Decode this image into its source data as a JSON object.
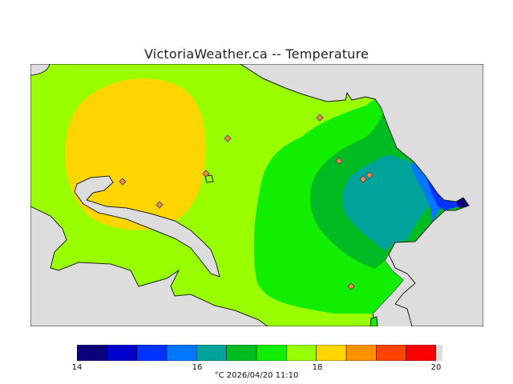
{
  "title": "VictoriaWeather.ca -- Temperature",
  "caption": "°C 2026/04/20 11:10",
  "legend": {
    "ticks": [
      "14",
      "16",
      "18",
      "20"
    ],
    "bins": [
      {
        "from": 14.0,
        "to": 14.5,
        "color": "#0a007a"
      },
      {
        "from": 14.5,
        "to": 15.0,
        "color": "#0000cc"
      },
      {
        "from": 15.0,
        "to": 15.5,
        "color": "#0033ff"
      },
      {
        "from": 15.5,
        "to": 16.0,
        "color": "#0077ff"
      },
      {
        "from": 16.0,
        "to": 16.5,
        "color": "#00a39a"
      },
      {
        "from": 16.5,
        "to": 17.0,
        "color": "#00bb22"
      },
      {
        "from": 17.0,
        "to": 17.5,
        "color": "#11ee00"
      },
      {
        "from": 17.5,
        "to": 18.0,
        "color": "#99ff00"
      },
      {
        "from": 18.0,
        "to": 18.5,
        "color": "#ffd500"
      },
      {
        "from": 18.5,
        "to": 19.0,
        "color": "#ff9100"
      },
      {
        "from": 19.0,
        "to": 19.5,
        "color": "#ff4400"
      },
      {
        "from": 19.5,
        "to": 20.0,
        "color": "#ff0000"
      }
    ]
  },
  "colors": {
    "water": "#dddddd",
    "coastline": "#222222",
    "station_marker": "#ff8844"
  },
  "stations_count": 9
}
